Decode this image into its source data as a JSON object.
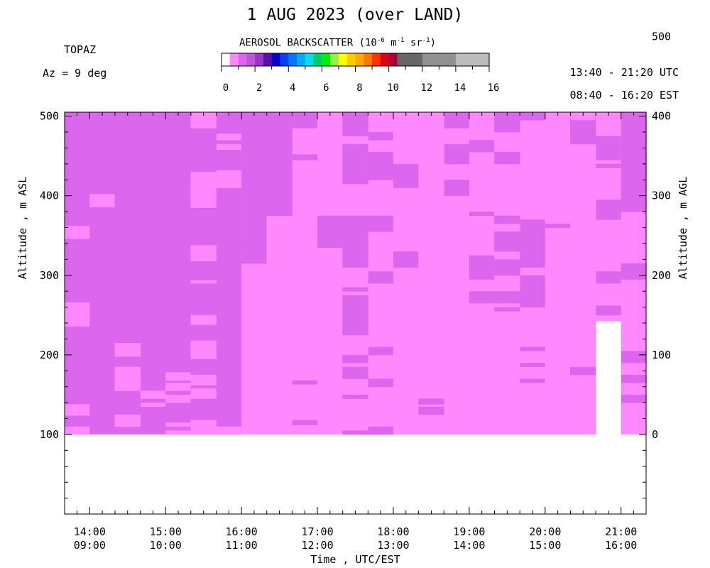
{
  "header": {
    "title": "1 AUG 2023 (over LAND)",
    "instrument": "TOPAZ",
    "azimuth": "Az =   9 deg",
    "utc_range": "13:40 - 21:20 UTC",
    "est_range": "08:40 - 16:20 EST"
  },
  "colorbar": {
    "title_prefix": "AEROSOL BACKSCATTER (10",
    "title_exp1": "-6",
    "title_mid1": " m",
    "title_exp2": "-1",
    "title_mid2": " sr",
    "title_exp3": "-1",
    "title_suffix": ")",
    "ticks": [
      "0",
      "2",
      "4",
      "6",
      "8",
      "10",
      "12",
      "14",
      "16"
    ],
    "segments": [
      {
        "from": 0,
        "to": 0.5,
        "color": "#ffffff"
      },
      {
        "from": 0.5,
        "to": 1.0,
        "color": "#ff88ff"
      },
      {
        "from": 1.0,
        "to": 1.5,
        "color": "#dd66ee"
      },
      {
        "from": 1.5,
        "to": 2.0,
        "color": "#bb55dd"
      },
      {
        "from": 2.0,
        "to": 2.5,
        "color": "#9933cc"
      },
      {
        "from": 2.5,
        "to": 3.0,
        "color": "#5511aa"
      },
      {
        "from": 3.0,
        "to": 3.5,
        "color": "#0000cc"
      },
      {
        "from": 3.5,
        "to": 4.0,
        "color": "#0044ee"
      },
      {
        "from": 4.0,
        "to": 4.5,
        "color": "#0077ff"
      },
      {
        "from": 4.5,
        "to": 5.0,
        "color": "#00aaff"
      },
      {
        "from": 5.0,
        "to": 5.5,
        "color": "#00ddee"
      },
      {
        "from": 5.5,
        "to": 6.0,
        "color": "#00cc66"
      },
      {
        "from": 6.0,
        "to": 6.5,
        "color": "#00ee00"
      },
      {
        "from": 6.5,
        "to": 7.0,
        "color": "#99ee44"
      },
      {
        "from": 7.0,
        "to": 7.5,
        "color": "#ffff00"
      },
      {
        "from": 7.5,
        "to": 8.0,
        "color": "#ffcc00"
      },
      {
        "from": 8.0,
        "to": 8.5,
        "color": "#ffaa00"
      },
      {
        "from": 8.5,
        "to": 9.0,
        "color": "#ff7700"
      },
      {
        "from": 9.0,
        "to": 9.5,
        "color": "#ff3300"
      },
      {
        "from": 9.5,
        "to": 10.0,
        "color": "#dd0011"
      },
      {
        "from": 10.0,
        "to": 10.5,
        "color": "#aa0033"
      },
      {
        "from": 10.5,
        "to": 12.0,
        "color": "#666666"
      },
      {
        "from": 12.0,
        "to": 14.0,
        "color": "#909090"
      },
      {
        "from": 14.0,
        "to": 16.0,
        "color": "#bbbbbb"
      }
    ]
  },
  "chart_data": {
    "type": "heatmap",
    "title": "1 AUG 2023 (over LAND)",
    "xlabel": "Time , UTC/EST",
    "ylabel_left": "Altitude , m ASL",
    "ylabel_right": "Altitude , m AGL",
    "x_range_hours_utc": [
      13.67,
      21.33
    ],
    "y_range_m_asl": [
      0,
      505
    ],
    "x_tick_labels_utc": [
      "14:00",
      "15:00",
      "16:00",
      "17:00",
      "18:00",
      "19:00",
      "20:00",
      "21:00"
    ],
    "x_tick_labels_est": [
      "09:00",
      "10:00",
      "11:00",
      "12:00",
      "13:00",
      "14:00",
      "15:00",
      "16:00"
    ],
    "x_ticks_utc_hours": [
      14,
      15,
      16,
      17,
      18,
      19,
      20,
      21
    ],
    "y_ticks_left": [
      100,
      200,
      300,
      400,
      500
    ],
    "y_ticks_right": [
      0,
      100,
      200,
      300,
      400,
      500
    ],
    "right_axis_offset_m": 100,
    "profile_start_hours_utc": [
      13.67,
      14.0,
      14.33,
      14.67,
      15.0,
      15.33,
      15.67,
      16.0,
      16.33,
      16.67,
      17.0,
      17.33,
      17.67,
      18.0,
      18.33,
      18.67,
      19.0,
      19.33,
      19.67,
      20.0,
      20.33,
      20.67,
      21.0
    ],
    "profile_end_hour_utc": 21.33,
    "data_bottom_m": 100,
    "data_top_m": 505,
    "missing_profiles": [
      {
        "index": 21,
        "from_m": 100,
        "to_m": 242
      }
    ],
    "background_value": 0.75,
    "columns": [
      {
        "base": 1.25,
        "cells": [
          [
            100,
            110,
            0.75
          ],
          [
            124,
            138,
            0.75
          ],
          [
            236,
            266,
            0.75
          ],
          [
            346,
            362,
            0.75
          ]
        ]
      },
      {
        "base": 1.25,
        "cells": [
          [
            386,
            402,
            0.75
          ]
        ]
      },
      {
        "base": 1.25,
        "cells": [
          [
            110,
            125,
            0.75
          ],
          [
            155,
            185,
            0.75
          ],
          [
            198,
            215,
            0.75
          ]
        ]
      },
      {
        "base": 1.25,
        "cells": [
          [
            135,
            140,
            0.75
          ],
          [
            145,
            155,
            0.75
          ]
        ]
      },
      {
        "base": 1.25,
        "cells": [
          [
            100,
            105,
            0.75
          ],
          [
            110,
            115,
            0.75
          ],
          [
            140,
            150,
            0.75
          ],
          [
            155,
            165,
            0.75
          ],
          [
            168,
            178,
            0.75
          ]
        ]
      },
      {
        "base": 1.25,
        "cells": [
          [
            100,
            118,
            0.75
          ],
          [
            145,
            158,
            0.75
          ],
          [
            162,
            175,
            0.75
          ],
          [
            195,
            218,
            0.75
          ],
          [
            238,
            250,
            0.75
          ],
          [
            290,
            294,
            0.75
          ],
          [
            318,
            338,
            0.75
          ],
          [
            385,
            430,
            0.75
          ],
          [
            485,
            505,
            0.75
          ]
        ]
      },
      {
        "base": 1.25,
        "cells": [
          [
            100,
            110,
            0.75
          ],
          [
            410,
            432,
            0.75
          ],
          [
            458,
            465,
            0.75
          ],
          [
            470,
            478,
            0.75
          ]
        ]
      },
      {
        "base": 0.75,
        "cells": [
          [
            315,
            505,
            1.25
          ],
          [
            335,
            345,
            1.25
          ],
          [
            460,
            505,
            1.25
          ]
        ]
      },
      {
        "base": 0.75,
        "cells": [
          [
            375,
            505,
            1.25
          ]
        ]
      },
      {
        "base": 0.75,
        "cells": [
          [
            485,
            505,
            1.25
          ],
          [
            445,
            452,
            1.25
          ],
          [
            163,
            168,
            1.25
          ],
          [
            112,
            118,
            1.25
          ]
        ]
      },
      {
        "base": 0.75,
        "cells": [
          [
            335,
            375,
            1.25
          ]
        ]
      },
      {
        "base": 0.75,
        "cells": [
          [
            100,
            105,
            1.25
          ],
          [
            145,
            150,
            1.25
          ],
          [
            170,
            185,
            1.25
          ],
          [
            190,
            200,
            1.25
          ],
          [
            225,
            275,
            1.25
          ],
          [
            280,
            285,
            1.25
          ],
          [
            310,
            375,
            1.25
          ],
          [
            415,
            465,
            1.25
          ],
          [
            475,
            505,
            1.25
          ]
        ]
      },
      {
        "base": 0.75,
        "cells": [
          [
            100,
            110,
            1.25
          ],
          [
            160,
            170,
            1.25
          ],
          [
            200,
            210,
            1.25
          ],
          [
            290,
            305,
            1.25
          ],
          [
            355,
            375,
            1.25
          ],
          [
            420,
            455,
            1.25
          ],
          [
            470,
            480,
            1.25
          ]
        ]
      },
      {
        "base": 0.75,
        "cells": [
          [
            310,
            330,
            1.25
          ],
          [
            410,
            440,
            1.25
          ]
        ]
      },
      {
        "base": 0.75,
        "cells": [
          [
            125,
            135,
            1.25
          ],
          [
            138,
            145,
            1.25
          ]
        ]
      },
      {
        "base": 0.75,
        "cells": [
          [
            400,
            420,
            1.25
          ],
          [
            440,
            465,
            1.25
          ],
          [
            485,
            505,
            1.25
          ]
        ]
      },
      {
        "base": 0.75,
        "cells": [
          [
            265,
            280,
            1.25
          ],
          [
            295,
            325,
            1.25
          ],
          [
            375,
            380,
            1.25
          ],
          [
            455,
            470,
            1.25
          ]
        ]
      },
      {
        "base": 0.75,
        "cells": [
          [
            255,
            260,
            1.25
          ],
          [
            265,
            280,
            1.25
          ],
          [
            300,
            320,
            1.25
          ],
          [
            330,
            355,
            1.25
          ],
          [
            365,
            375,
            1.25
          ],
          [
            440,
            455,
            1.25
          ],
          [
            480,
            505,
            1.25
          ]
        ]
      },
      {
        "base": 0.75,
        "cells": [
          [
            165,
            170,
            1.25
          ],
          [
            185,
            190,
            1.25
          ],
          [
            205,
            210,
            1.25
          ],
          [
            260,
            300,
            1.25
          ],
          [
            310,
            370,
            1.25
          ],
          [
            495,
            505,
            1.25
          ]
        ]
      },
      {
        "base": 0.75,
        "cells": [
          [
            360,
            365,
            1.25
          ]
        ]
      },
      {
        "base": 0.75,
        "cells": [
          [
            175,
            185,
            1.25
          ],
          [
            465,
            495,
            1.25
          ]
        ]
      },
      {
        "base": 0.75,
        "cells": [
          [
            250,
            262,
            1.25
          ],
          [
            290,
            305,
            1.25
          ],
          [
            370,
            395,
            1.25
          ],
          [
            435,
            440,
            1.25
          ],
          [
            445,
            475,
            1.25
          ]
        ]
      },
      {
        "base": 0.75,
        "cells": [
          [
            140,
            150,
            1.25
          ],
          [
            165,
            175,
            1.25
          ],
          [
            190,
            205,
            1.25
          ],
          [
            295,
            315,
            1.25
          ],
          [
            380,
            505,
            1.25
          ]
        ]
      }
    ]
  }
}
